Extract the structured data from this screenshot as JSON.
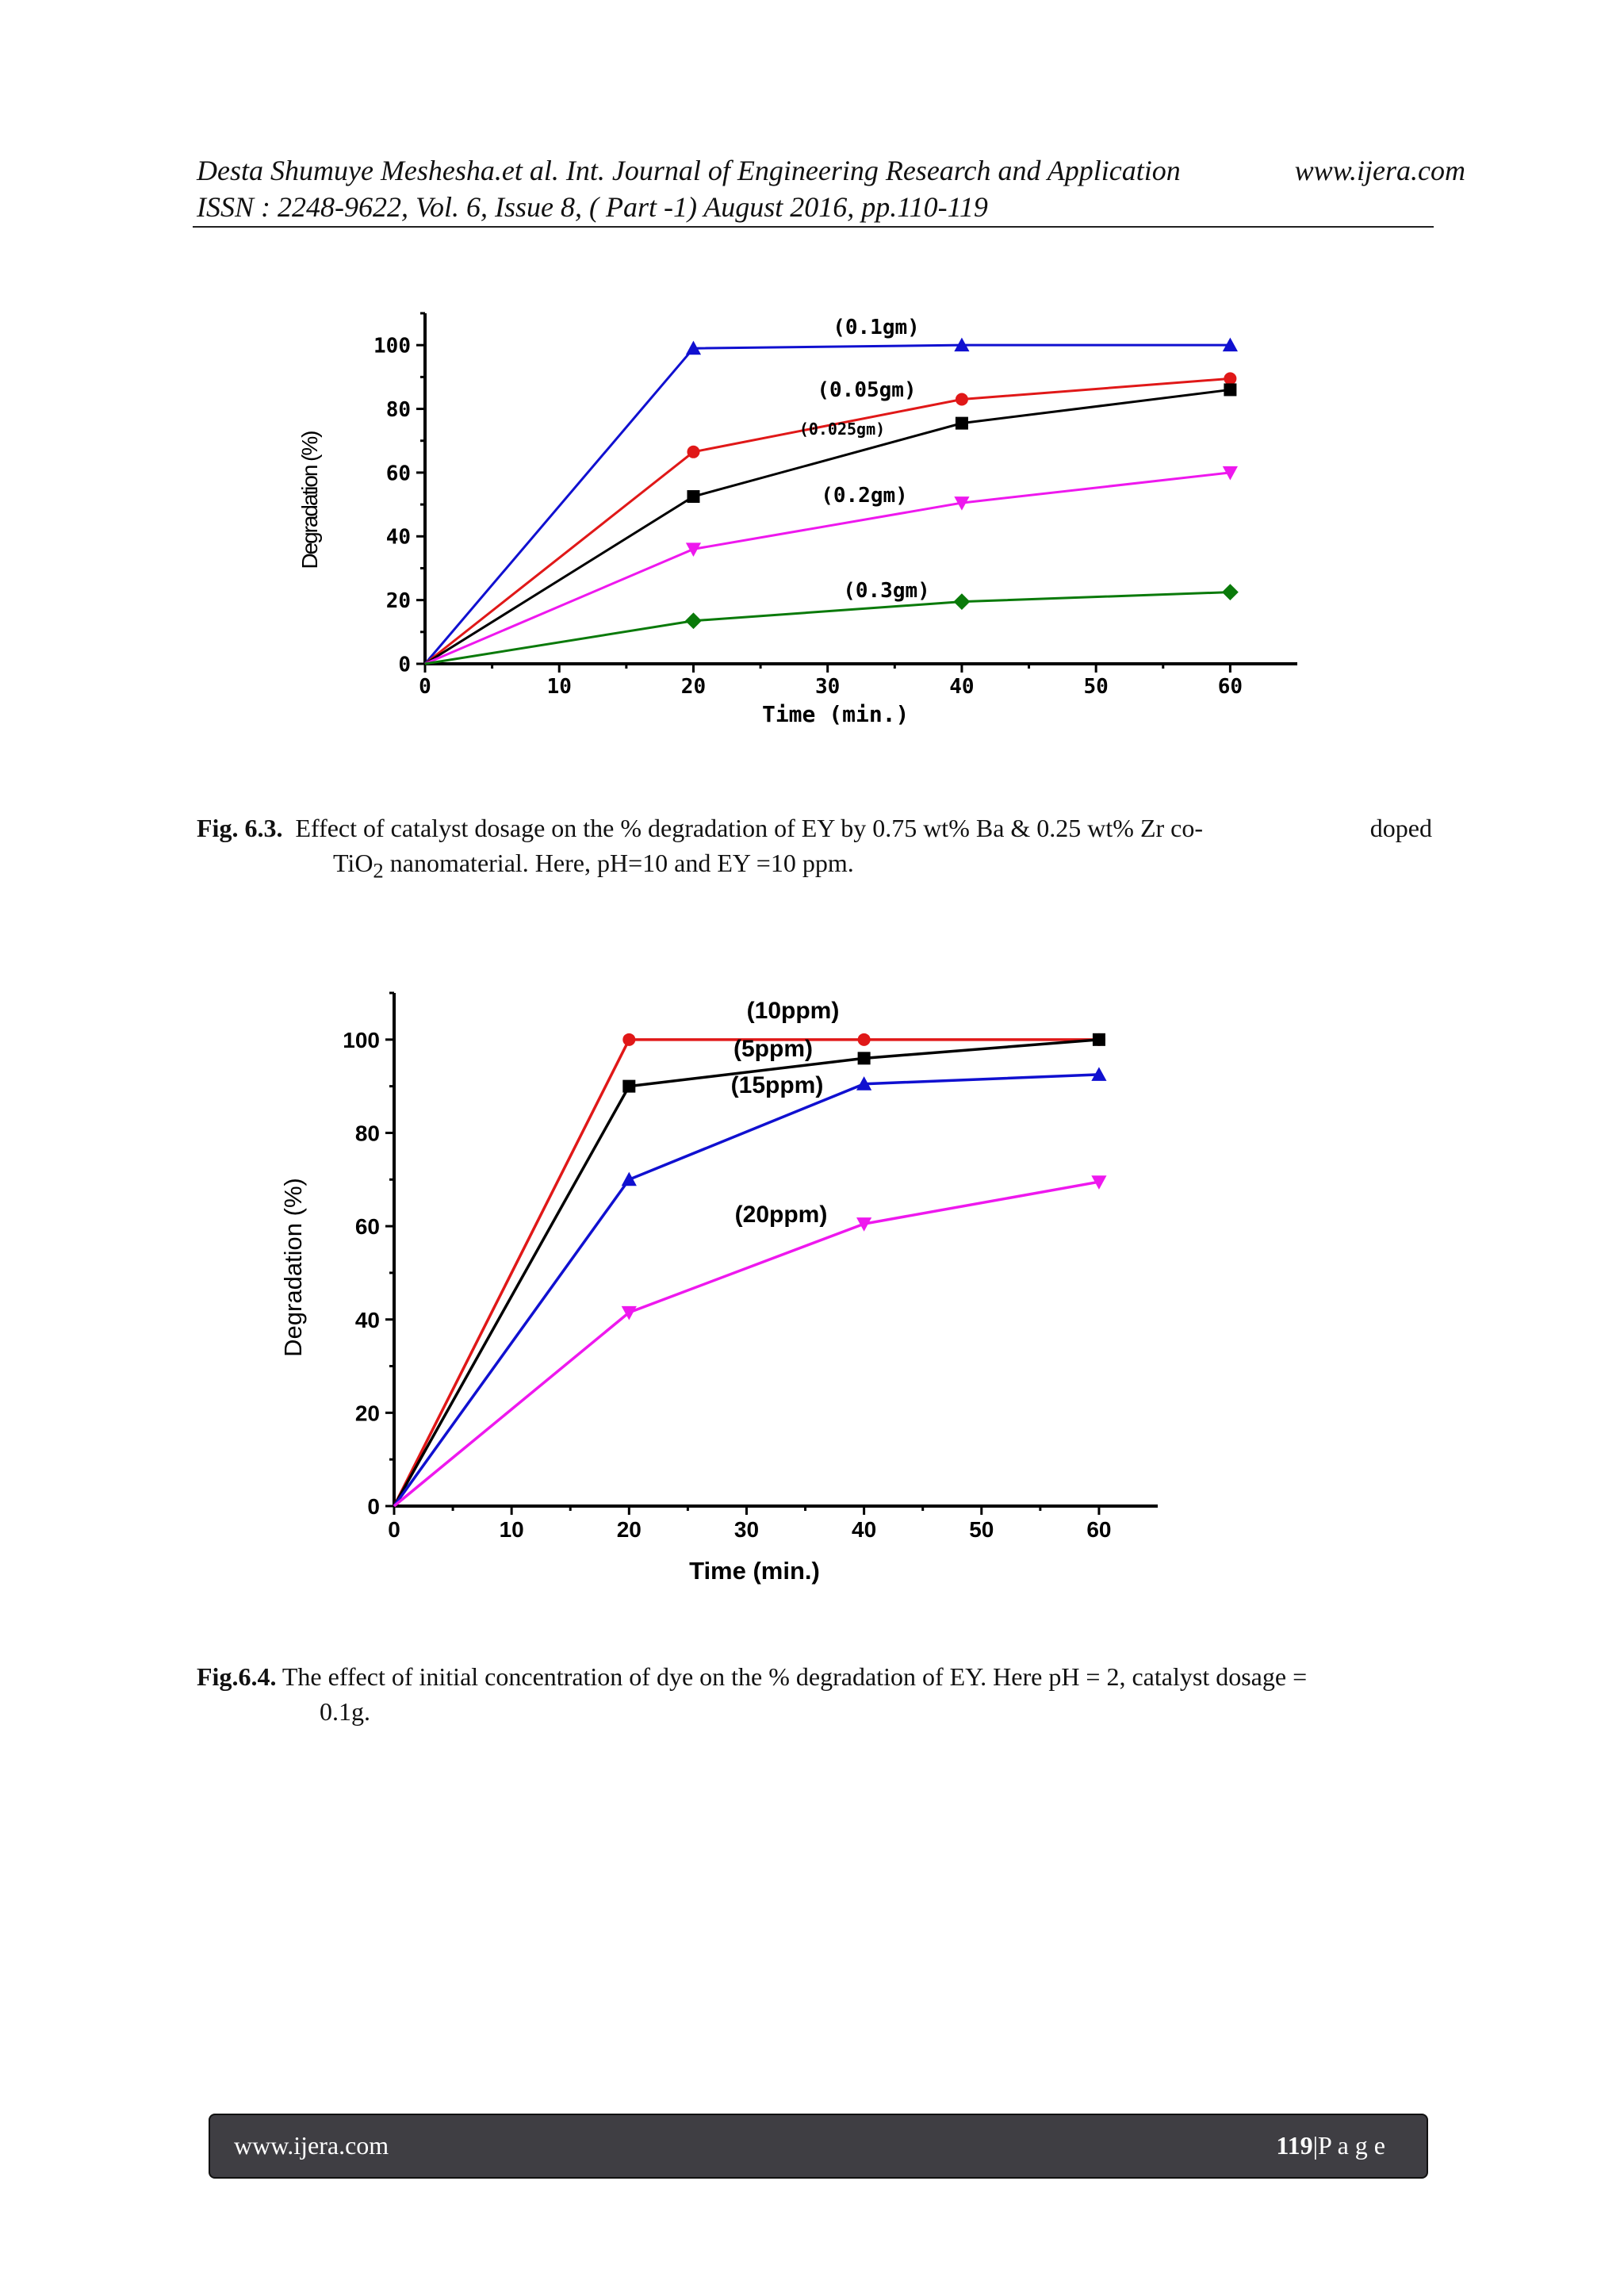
{
  "header": {
    "line1": "Desta Shumuye Meshesha.et al. Int. Journal of Engineering Research and Application",
    "url": "www.ijera.com",
    "line2": "ISSN : 2248-9622, Vol. 6, Issue 8, ( Part -1) August 2016, pp.110-119"
  },
  "figure1": {
    "caption_label": "Fig. 6.3.",
    "caption_line1": "Effect of catalyst dosage on the % degradation of EY by 0.75 wt% Ba & 0.25 wt%  Zr co-",
    "caption_line1_end": "doped",
    "caption_line2_pre": "TiO",
    "caption_line2_sub": "2",
    "caption_line2_post": " nanomaterial. Here, pH=10 and EY =10 ppm."
  },
  "figure2": {
    "caption_label": "Fig.6.4.",
    "caption_line1": " The effect of initial concentration of dye on the % degradation of EY. Here pH = 2, catalyst dosage =",
    "caption_line2": "0.1g."
  },
  "footer": {
    "url": "www.ijera.com",
    "page_number": "119",
    "page_word": "|P a g e"
  },
  "chart_data": [
    {
      "type": "line",
      "xlabel": "Time (min.)",
      "ylabel": "Degradation (%)",
      "xlim": [
        0,
        65
      ],
      "ylim": [
        0,
        110
      ],
      "xticks": [
        0,
        10,
        20,
        30,
        40,
        50,
        60
      ],
      "yticks": [
        0,
        20,
        40,
        60,
        80,
        100
      ],
      "x": [
        0,
        20,
        40,
        60
      ],
      "series": [
        {
          "name": "(0.1gm)",
          "values": [
            0,
            99,
            100,
            100
          ],
          "color": "#1010d0",
          "marker": "triangle-up"
        },
        {
          "name": "(0.05gm)",
          "values": [
            0,
            66.5,
            83,
            89.5
          ],
          "color": "#e01818",
          "marker": "circle"
        },
        {
          "name": "(0.025gm)",
          "values": [
            0,
            52.5,
            75.5,
            86
          ],
          "color": "#000000",
          "marker": "square"
        },
        {
          "name": "(0.2gm)",
          "values": [
            0,
            36,
            50.5,
            60
          ],
          "color": "#ee18ee",
          "marker": "triangle-down"
        },
        {
          "name": "(0.3gm)",
          "values": [
            0,
            13.5,
            19.5,
            22.5
          ],
          "color": "#0a7a0a",
          "marker": "diamond"
        }
      ]
    },
    {
      "type": "line",
      "xlabel": "Time (min.)",
      "ylabel": "Degradation (%)",
      "xlim": [
        0,
        65
      ],
      "ylim": [
        0,
        110
      ],
      "xticks": [
        0,
        10,
        20,
        30,
        40,
        50,
        60
      ],
      "yticks": [
        0,
        20,
        40,
        60,
        80,
        100
      ],
      "x": [
        0,
        20,
        40,
        60
      ],
      "series": [
        {
          "name": "(10ppm)",
          "values": [
            0,
            100,
            100,
            100
          ],
          "color": "#e01818",
          "marker": "circle"
        },
        {
          "name": "(5ppm)",
          "values": [
            0,
            90,
            96,
            100
          ],
          "color": "#000000",
          "marker": "square"
        },
        {
          "name": "(15ppm)",
          "values": [
            0,
            70,
            90.5,
            92.5
          ],
          "color": "#1010d0",
          "marker": "triangle-up"
        },
        {
          "name": "(20ppm)",
          "values": [
            0,
            41.5,
            60.5,
            69.5
          ],
          "color": "#ee18ee",
          "marker": "triangle-down"
        }
      ]
    }
  ]
}
